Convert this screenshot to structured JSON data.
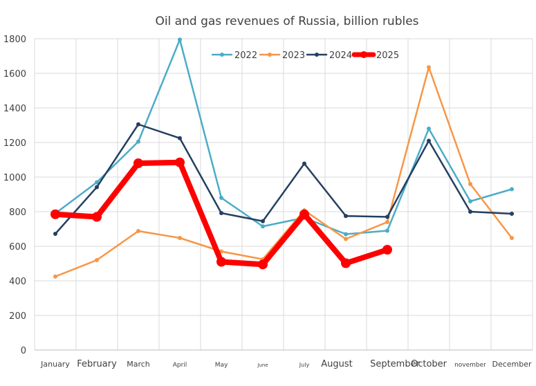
{
  "chart_data": {
    "type": "line",
    "title": "Oil and gas revenues of Russia, billion rubles",
    "xlabel": "",
    "ylabel": "",
    "ylim": [
      0,
      1800
    ],
    "yticks": [
      0,
      200,
      400,
      600,
      800,
      1000,
      1200,
      1400,
      1600,
      1800
    ],
    "grid": true,
    "legend_position": "top",
    "categories": [
      "January",
      "February",
      "March",
      "April",
      "May",
      "June",
      "July",
      "August",
      "September",
      "October",
      "november",
      "December"
    ],
    "series": [
      {
        "name": "2022",
        "color": "#4bacc6",
        "values": [
          790,
          970,
          1205,
          1795,
          880,
          715,
          765,
          670,
          690,
          1280,
          860,
          930
        ]
      },
      {
        "name": "2023",
        "color": "#f79646",
        "values": [
          425,
          520,
          688,
          648,
          570,
          525,
          808,
          642,
          740,
          1635,
          960,
          648
        ]
      },
      {
        "name": "2024",
        "color": "#243f60",
        "values": [
          672,
          942,
          1305,
          1225,
          792,
          745,
          1078,
          775,
          770,
          1210,
          800,
          788
        ]
      },
      {
        "name": "2025",
        "color": "#ff0000",
        "values": [
          785,
          770,
          1080,
          1085,
          510,
          495,
          785,
          502,
          580,
          null,
          null,
          null
        ]
      }
    ]
  }
}
